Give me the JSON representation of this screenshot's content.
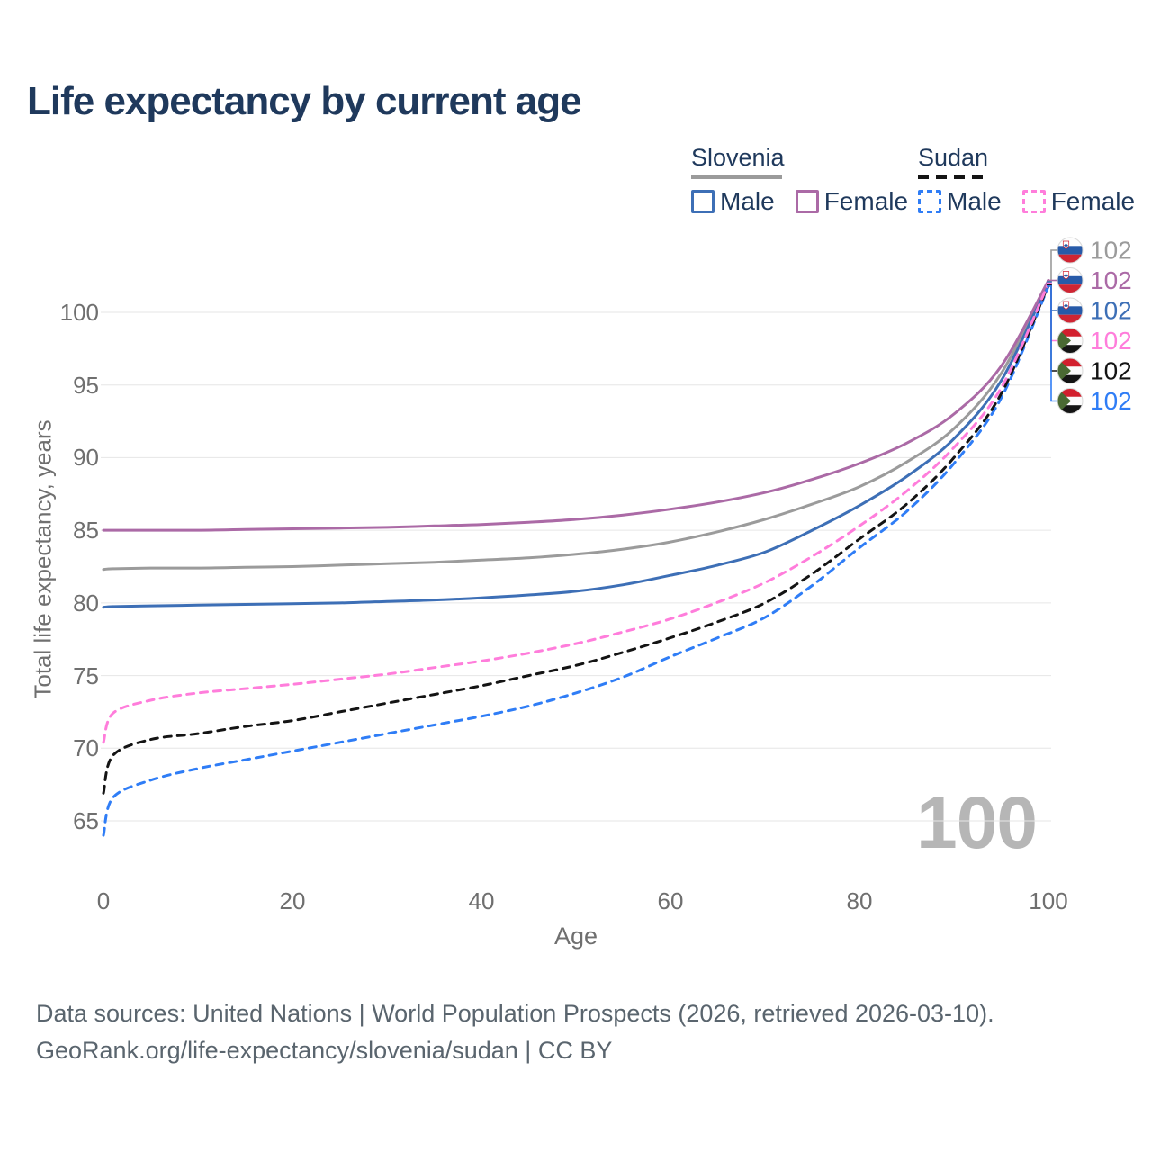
{
  "title": "Life expectancy by current age",
  "legend": {
    "groups": [
      {
        "label": "Slovenia",
        "line_style": "solid",
        "line_color": "#9b9b9b",
        "items": [
          {
            "label": "Male",
            "color": "#3d6fb6",
            "dashed": false
          },
          {
            "label": "Female",
            "color": "#ab6aa6",
            "dashed": false
          }
        ]
      },
      {
        "label": "Sudan",
        "line_style": "dashed",
        "line_color": "#141414",
        "items": [
          {
            "label": "Male",
            "color": "#2f7df6",
            "dashed": true
          },
          {
            "label": "Female",
            "color": "#ff7ddb",
            "dashed": true
          }
        ]
      }
    ]
  },
  "age_ticker": "100",
  "end_labels": [
    {
      "flag": "slovenia-flag-icon",
      "country": "Slovenia",
      "value": "102",
      "color": "#9b9b9b",
      "series_key": "slovenia-all"
    },
    {
      "flag": "slovenia-flag-icon",
      "country": "Slovenia",
      "value": "102",
      "color": "#ab6aa6",
      "series_key": "slovenia-female"
    },
    {
      "flag": "slovenia-flag-icon",
      "country": "Slovenia",
      "value": "102",
      "color": "#3d6fb6",
      "series_key": "slovenia-male"
    },
    {
      "flag": "sudan-flag-icon",
      "country": "Sudan",
      "value": "102",
      "color": "#ff7ddb",
      "series_key": "sudan-female"
    },
    {
      "flag": "sudan-flag-icon",
      "country": "Sudan",
      "value": "102",
      "color": "#141414",
      "series_key": "sudan-all"
    },
    {
      "flag": "sudan-flag-icon",
      "country": "Sudan",
      "value": "102",
      "color": "#2f7df6",
      "series_key": "sudan-male"
    }
  ],
  "footer": {
    "line1": "Data sources: United Nations | World Population Prospects (2026, retrieved 2026-03-10).",
    "line2": "GeoRank.org/life-expectancy/slovenia/sudan | CC BY"
  },
  "chart_data": {
    "type": "line",
    "title": "Life expectancy by current age",
    "xlabel": "Age",
    "ylabel": "Total life expectancy, years",
    "xlim": [
      0,
      100
    ],
    "ylim": [
      63,
      103.5
    ],
    "x_ticks": [
      0,
      20,
      40,
      60,
      80,
      100
    ],
    "y_ticks": [
      65,
      70,
      75,
      80,
      85,
      90,
      95,
      100
    ],
    "grid": "horizontal-only",
    "legend_position": "top-right",
    "x": [
      0,
      1,
      5,
      10,
      15,
      20,
      25,
      30,
      35,
      40,
      45,
      50,
      55,
      60,
      65,
      70,
      75,
      80,
      85,
      90,
      95,
      100
    ],
    "series": [
      {
        "key": "slovenia-all",
        "name": "Slovenia",
        "sex": "Both",
        "color": "#9b9b9b",
        "dash": "solid",
        "values": [
          82.3,
          82.35,
          82.4,
          82.4,
          82.45,
          82.5,
          82.6,
          82.7,
          82.8,
          82.95,
          83.1,
          83.35,
          83.7,
          84.2,
          84.9,
          85.75,
          86.8,
          88.0,
          89.7,
          92.0,
          95.8,
          102.15
        ]
      },
      {
        "key": "slovenia-male",
        "name": "Slovenia Male",
        "sex": "Male",
        "color": "#3d6fb6",
        "dash": "solid",
        "values": [
          79.7,
          79.75,
          79.8,
          79.85,
          79.9,
          79.95,
          80.0,
          80.1,
          80.2,
          80.35,
          80.55,
          80.8,
          81.25,
          81.9,
          82.6,
          83.5,
          85.0,
          86.7,
          88.7,
          91.3,
          95.3,
          102.1
        ]
      },
      {
        "key": "slovenia-female",
        "name": "Slovenia Female",
        "sex": "Female",
        "color": "#ab6aa6",
        "dash": "solid",
        "values": [
          85.0,
          85.0,
          85.0,
          85.0,
          85.05,
          85.1,
          85.15,
          85.2,
          85.3,
          85.4,
          85.55,
          85.75,
          86.05,
          86.45,
          86.95,
          87.6,
          88.5,
          89.6,
          91.0,
          93.0,
          96.3,
          102.2
        ]
      },
      {
        "key": "sudan-male",
        "name": "Sudan Male",
        "sex": "Male",
        "color": "#2f7df6",
        "dash": "dashed",
        "values": [
          64.0,
          66.6,
          67.8,
          68.6,
          69.2,
          69.8,
          70.4,
          71.0,
          71.6,
          72.2,
          72.9,
          73.8,
          74.9,
          76.3,
          77.6,
          79.0,
          81.2,
          83.8,
          86.3,
          89.6,
          94.1,
          101.8
        ]
      },
      {
        "key": "sudan-all",
        "name": "Sudan",
        "sex": "Both",
        "color": "#141414",
        "dash": "dashed",
        "values": [
          66.9,
          69.5,
          70.6,
          71.0,
          71.5,
          71.9,
          72.5,
          73.1,
          73.7,
          74.3,
          75.0,
          75.7,
          76.6,
          77.6,
          78.7,
          80.0,
          82.0,
          84.4,
          86.8,
          90.0,
          94.4,
          101.9
        ]
      },
      {
        "key": "sudan-female",
        "name": "Sudan Female",
        "sex": "Female",
        "color": "#ff7ddb",
        "dash": "dashed",
        "values": [
          70.4,
          72.4,
          73.3,
          73.8,
          74.1,
          74.4,
          74.75,
          75.1,
          75.55,
          76.0,
          76.55,
          77.2,
          78.0,
          78.9,
          80.05,
          81.4,
          83.2,
          85.3,
          87.7,
          90.7,
          94.8,
          102.0
        ]
      }
    ]
  }
}
